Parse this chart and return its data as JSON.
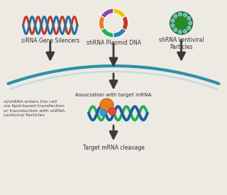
{
  "bg_color": "#ede9e3",
  "labels": {
    "sirna": "siRNA Gene Silencers",
    "shrna_plasmid": "shRNA Plasmid DNA",
    "shrna_lentiviral": "shRNA Lentiviral\nParticles",
    "association": "Association with target mRNA",
    "cleavage": "Target mRNA cleavage",
    "side_note": "si/shRNA enters the cell\nvia lipid-based transfection\nor transduction with shRNA\nLentiviral Particles"
  },
  "arrow_color": "#3a3a3a",
  "arc_color_outer": "#2e8fa8",
  "arc_color_inner": "#b0d8e8",
  "dna_strand1": "#c0392b",
  "dna_strand2": "#2471a3",
  "plasmid_colors": [
    "#8e44ad",
    "#e67e22",
    "#27ae60",
    "#2980b9",
    "#c0392b",
    "#f1c40f"
  ],
  "lentiviral_body": "#2a8a2a",
  "lentiviral_dot": "#5ab4e8",
  "mrna_strand1": "#27ae60",
  "mrna_strand2": "#1a5fa0",
  "risc_main": "#e67e22",
  "risc_red": "#e74c3c",
  "risc_blue": "#3498db"
}
